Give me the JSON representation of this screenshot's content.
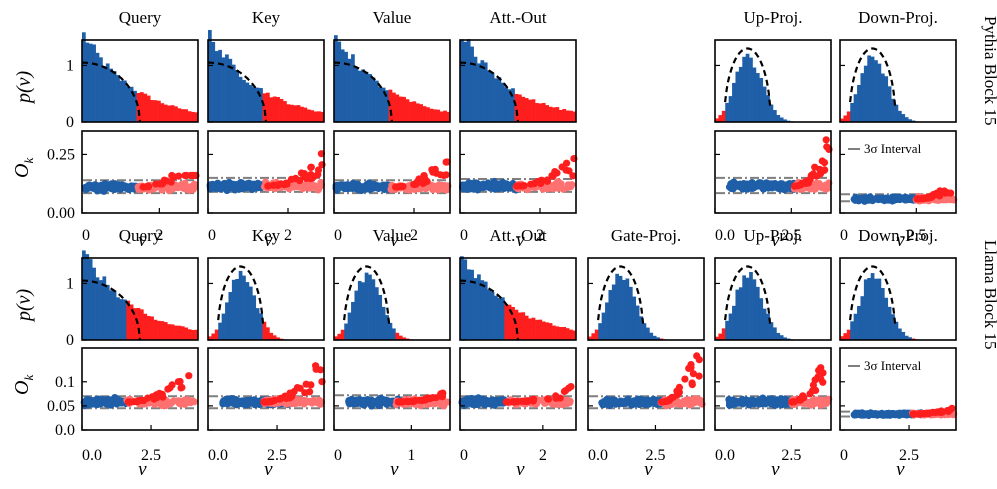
{
  "chart_data": {
    "type": "histogram-scatter-grid",
    "colors": {
      "in": "#1f5fa8",
      "out": "#ff1e1e",
      "out_light": "#ff7070",
      "curve": "#000000",
      "interval": "#7f7f7f"
    },
    "groups": [
      {
        "label": "Pythia Block 15",
        "hist_ylabel": "p(ν)",
        "hist_yticks": [
          "0",
          "1"
        ],
        "scatter_ylabel": "O",
        "scatter_ylabel_sub": "k",
        "scatter_ylim": [
          0,
          0.35
        ],
        "scatter_yticks": [
          {
            "v": 0.0,
            "t": "0.00"
          },
          {
            "v": 0.25,
            "t": "0.25"
          }
        ],
        "legend": "3σ Interval",
        "panels": [
          {
            "name": "Query",
            "col": 0,
            "dist": "decay",
            "scale": 3.0,
            "marks": [
              {
                "v": 0,
                "t": "0"
              },
              {
                "v": 2,
                "t": "2"
              }
            ],
            "xlabel": "ν",
            "tail": 1.45,
            "spread": 0.15,
            "hi": 0.14,
            "lo": 0.085,
            "mid": 0.11,
            "spike": 0.16
          },
          {
            "name": "Key",
            "col": 1,
            "dist": "decay",
            "scale": 2.9,
            "marks": [
              {
                "v": 0,
                "t": "0"
              },
              {
                "v": 2,
                "t": "2"
              }
            ],
            "xlabel": "ν",
            "tail": 1.4,
            "spread": 0.12,
            "hi": 0.15,
            "lo": 0.09,
            "mid": 0.115,
            "spike": 0.3
          },
          {
            "name": "Value",
            "col": 2,
            "dist": "decay",
            "scale": 2.9,
            "marks": [
              {
                "v": 0,
                "t": "0"
              },
              {
                "v": 2,
                "t": "2"
              }
            ],
            "xlabel": "ν",
            "tail": 1.4,
            "spread": 0.12,
            "hi": 0.14,
            "lo": 0.085,
            "mid": 0.11,
            "spike": 0.3
          },
          {
            "name": "Att.-Out",
            "col": 3,
            "dist": "decay",
            "scale": 2.9,
            "marks": [
              {
                "v": 0,
                "t": "0"
              },
              {
                "v": 2,
                "t": "2"
              }
            ],
            "xlabel": "ν",
            "tail": 1.4,
            "spread": 0.12,
            "hi": 0.145,
            "lo": 0.09,
            "mid": 0.115,
            "spike": 0.3
          },
          {
            "name": "Up-Proj.",
            "col": 5,
            "dist": "bell",
            "scale": 3.8,
            "marks": [
              {
                "v": 0,
                "t": "0.0"
              },
              {
                "v": 2.5,
                "t": "2.5"
              }
            ],
            "xlabel": "ν",
            "tail": 2.6,
            "spread": 0.22,
            "hi": 0.15,
            "lo": 0.085,
            "mid": 0.115,
            "spike": 0.35
          },
          {
            "name": "Down-Proj.",
            "col": 6,
            "dist": "bell",
            "scale": 3.8,
            "marks": [
              {
                "v": 0,
                "t": "0"
              },
              {
                "v": 2.5,
                "t": "2.5"
              }
            ],
            "xlabel": "ν",
            "tail": 2.5,
            "spread": 0.08,
            "hi": 0.08,
            "lo": 0.05,
            "mid": 0.06,
            "spike": 0.15
          }
        ]
      },
      {
        "label": "Llama Block 15",
        "hist_ylabel": "p(ν)",
        "hist_yticks": [
          "0",
          "1"
        ],
        "scatter_ylabel": "O",
        "scatter_ylabel_sub": "k",
        "scatter_ylim": [
          0,
          0.17
        ],
        "scatter_yticks": [
          {
            "v": 0.0,
            "t": "0.0"
          },
          {
            "v": 0.05,
            "t": "0.05"
          },
          {
            "v": 0.1,
            "t": "0.1"
          }
        ],
        "legend": "3σ Interval",
        "panels": [
          {
            "name": "Query",
            "col": 0,
            "dist": "decay",
            "scale": 4.2,
            "marks": [
              {
                "v": 0,
                "t": "0.0"
              },
              {
                "v": 2.5,
                "t": "2.5"
              }
            ],
            "xlabel": "ν",
            "tail": 1.6,
            "spread": 0.07,
            "hi": 0.07,
            "lo": 0.045,
            "mid": 0.058,
            "spike": 0.16
          },
          {
            "name": "Key",
            "col": 1,
            "dist": "bell",
            "scale": 4.2,
            "marks": [
              {
                "v": 0,
                "t": "0.0"
              },
              {
                "v": 2.5,
                "t": "2.5"
              }
            ],
            "xlabel": "ν",
            "tail": 2.0,
            "spread": 0.08,
            "hi": 0.07,
            "lo": 0.045,
            "mid": 0.058,
            "spike": 0.16
          },
          {
            "name": "Value",
            "col": 2,
            "dist": "bell",
            "scale": 1.5,
            "marks": [
              {
                "v": 0,
                "t": "0"
              },
              {
                "v": 1,
                "t": "1"
              }
            ],
            "xlabel": "ν",
            "tail": 0.8,
            "spread": 0.02,
            "hi": 0.072,
            "lo": 0.045,
            "mid": 0.058,
            "spike": 0.08
          },
          {
            "name": "Att.-Out",
            "col": 3,
            "dist": "decay",
            "scale": 2.8,
            "marks": [
              {
                "v": 0,
                "t": "0"
              },
              {
                "v": 2,
                "t": "2"
              }
            ],
            "xlabel": "ν",
            "tail": 1.1,
            "spread": 0.03,
            "hi": 0.07,
            "lo": 0.045,
            "mid": 0.058,
            "spike": 0.1
          },
          {
            "name": "Gate-Proj.",
            "col": 4,
            "dist": "bell",
            "scale": 4.3,
            "marks": [
              {
                "v": 0,
                "t": "0.0"
              },
              {
                "v": 2.5,
                "t": "2.5"
              }
            ],
            "xlabel": "ν",
            "tail": 2.7,
            "spread": 0.13,
            "hi": 0.07,
            "lo": 0.045,
            "mid": 0.058,
            "spike": 0.18
          },
          {
            "name": "Up-Proj.",
            "col": 5,
            "dist": "bell",
            "scale": 3.8,
            "marks": [
              {
                "v": 0,
                "t": "0.0"
              },
              {
                "v": 2.5,
                "t": "2.5"
              }
            ],
            "xlabel": "ν",
            "tail": 2.5,
            "spread": 0.13,
            "hi": 0.07,
            "lo": 0.045,
            "mid": 0.058,
            "spike": 0.18
          },
          {
            "name": "Down-Proj.",
            "col": 6,
            "dist": "bell",
            "scale": 4.2,
            "marks": [
              {
                "v": 0,
                "t": "0"
              },
              {
                "v": 2.5,
                "t": "2.5"
              }
            ],
            "xlabel": "ν",
            "tail": 2.6,
            "spread": 0.012,
            "hi": 0.038,
            "lo": 0.028,
            "mid": 0.033,
            "spike": 0.045
          }
        ]
      }
    ]
  }
}
